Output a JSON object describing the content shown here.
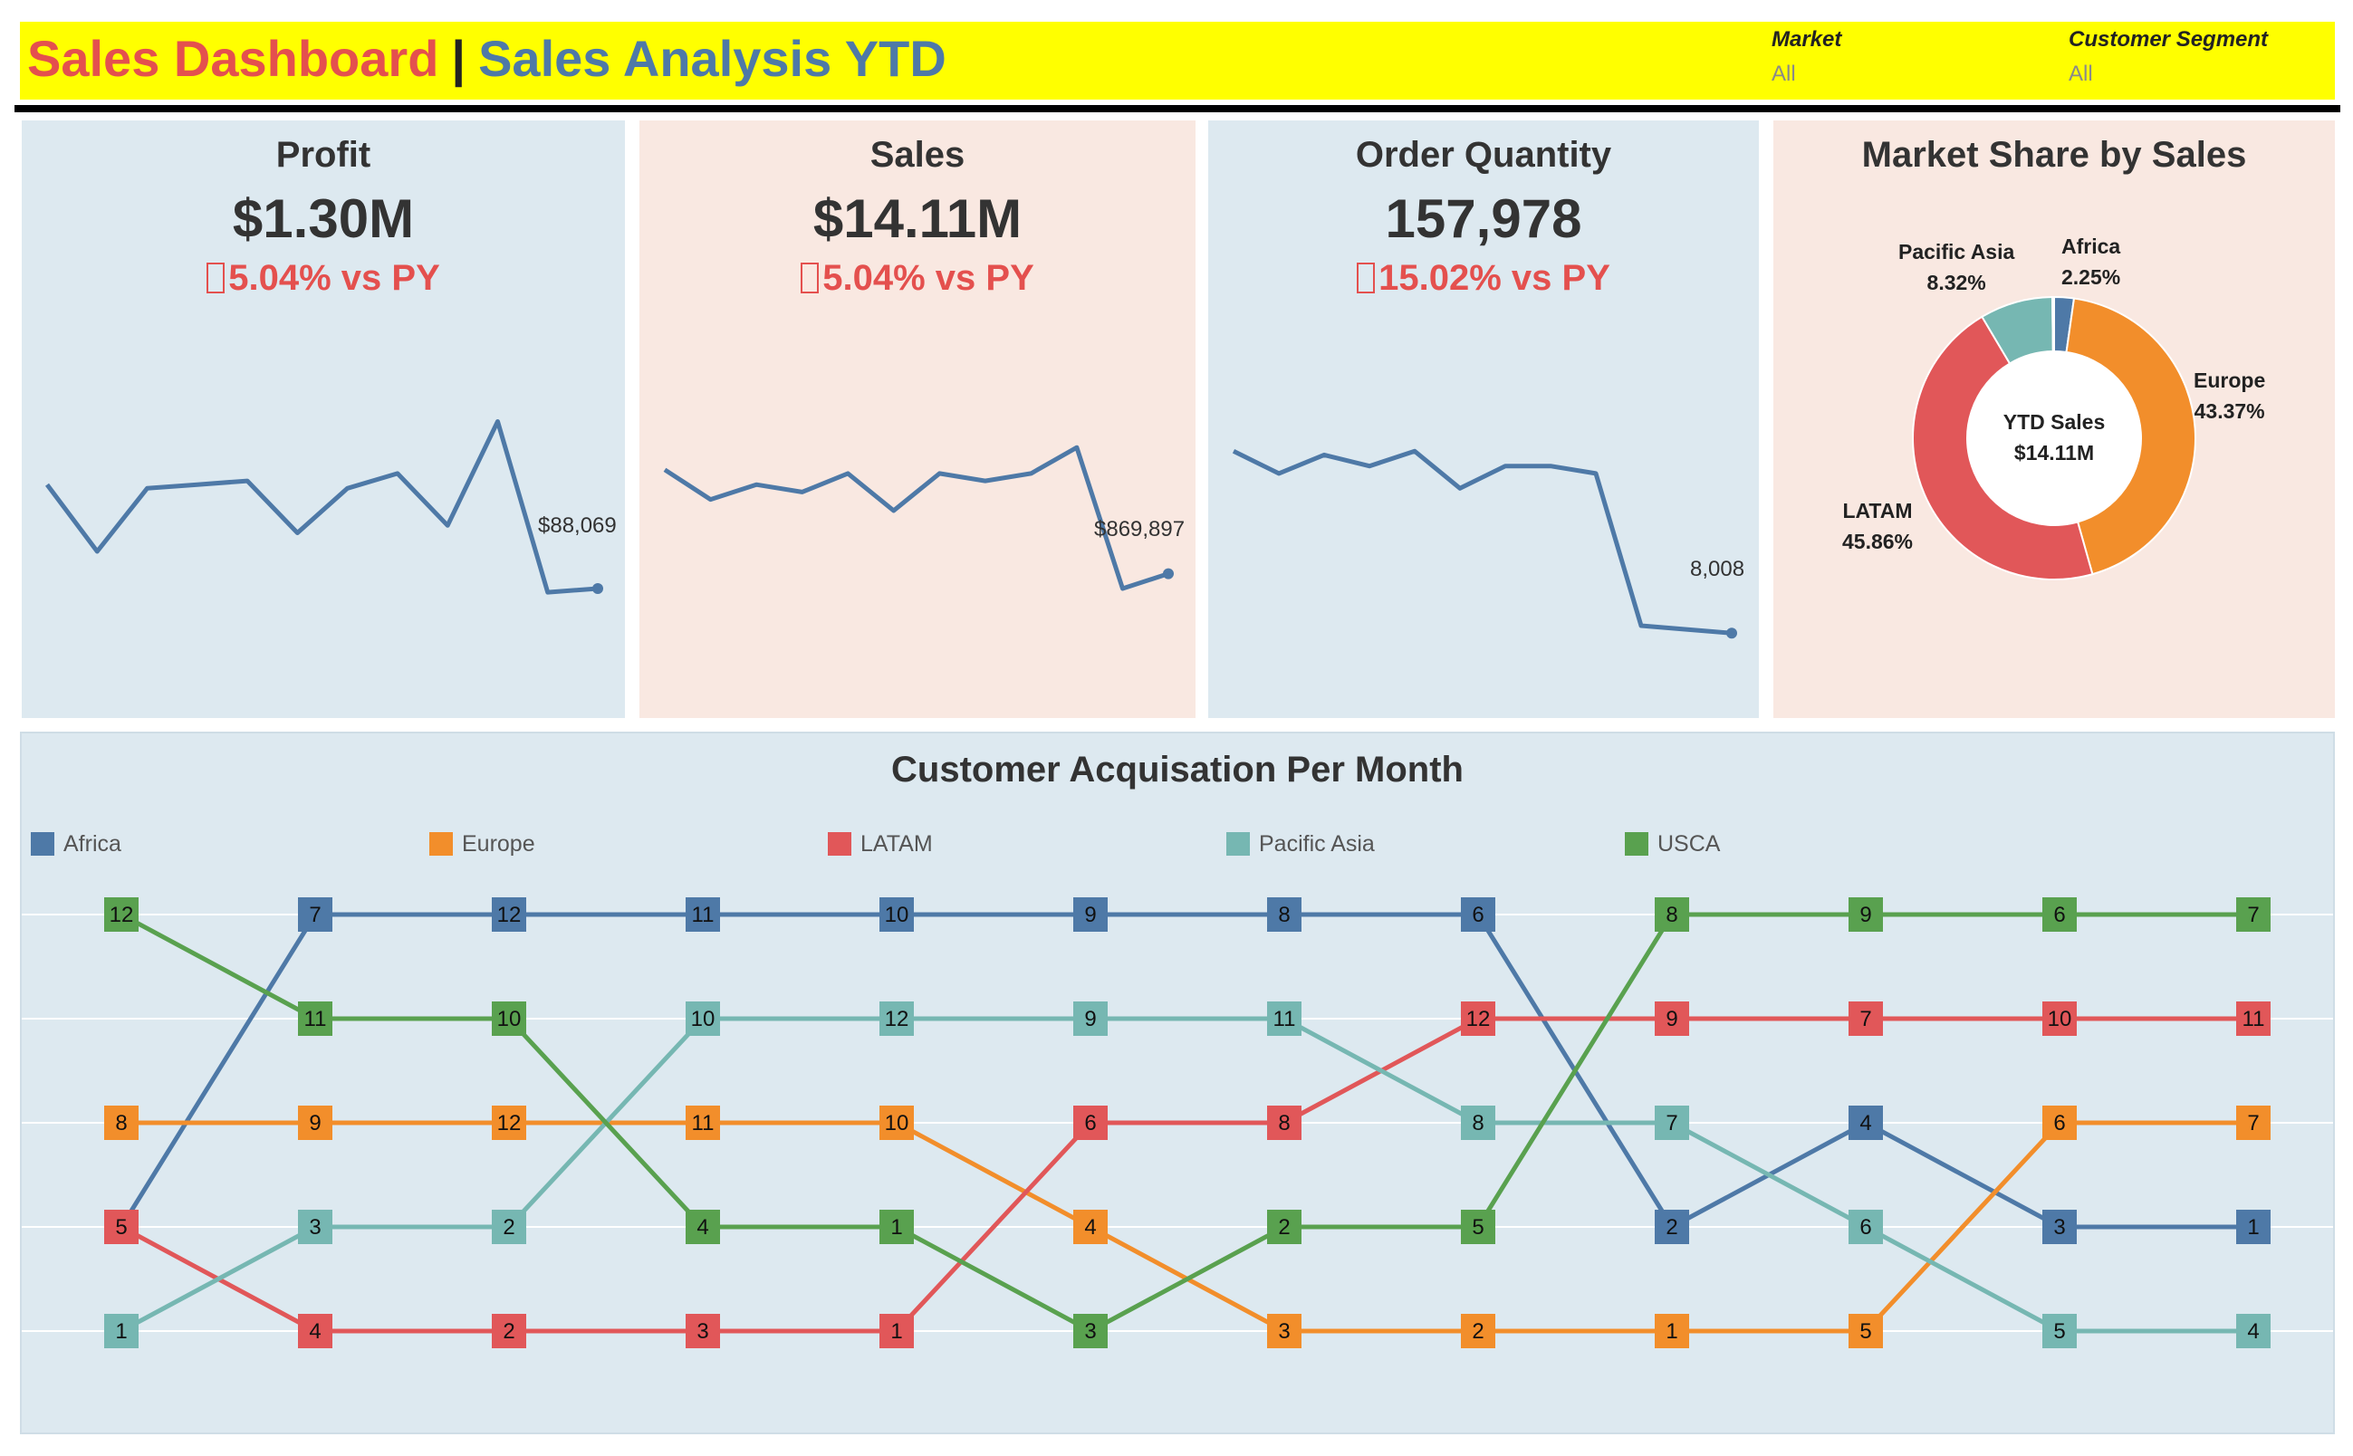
{
  "header": {
    "title_main": "Sales Dashboard",
    "title_sep": "|",
    "title_sub": "Sales Analysis YTD",
    "bg_color": "#ffff00"
  },
  "filters": [
    {
      "label": "Market",
      "value": "All"
    },
    {
      "label": "Customer Segment",
      "value": "All"
    }
  ],
  "kpis": [
    {
      "title": "Profit",
      "value": "$1.30M",
      "delta": "5.04% vs PY",
      "delta_icon": "missing-glyph-icon",
      "last_label": "$88,069",
      "spark": [
        0.58,
        0.4,
        0.57,
        0.58,
        0.59,
        0.45,
        0.57,
        0.61,
        0.47,
        0.75,
        0.29,
        0.3
      ]
    },
    {
      "title": "Sales",
      "value": "$14.11M",
      "delta": "5.04% vs PY",
      "delta_icon": "missing-glyph-icon",
      "last_label": "$869,897",
      "spark": [
        0.62,
        0.54,
        0.58,
        0.56,
        0.61,
        0.51,
        0.61,
        0.59,
        0.61,
        0.68,
        0.3,
        0.34
      ]
    },
    {
      "title": "Order Quantity",
      "value": "157,978",
      "delta": "15.02% vs PY",
      "delta_icon": "missing-glyph-icon",
      "last_label": "8,008",
      "spark": [
        0.67,
        0.61,
        0.66,
        0.63,
        0.67,
        0.57,
        0.63,
        0.63,
        0.61,
        0.2,
        0.19,
        0.18
      ]
    }
  ],
  "market_share": {
    "title": "Market Share by Sales",
    "center_label": "YTD Sales",
    "center_value": "$14.11M",
    "slices": [
      {
        "name": "Africa",
        "value": 2.25,
        "label": "2.25%",
        "color": "#4e79a7"
      },
      {
        "name": "Europe",
        "value": 43.37,
        "label": "43.37%",
        "color": "#f28e2b"
      },
      {
        "name": "LATAM",
        "value": 45.86,
        "label": "45.86%",
        "color": "#e15759"
      },
      {
        "name": "Pacific Asia",
        "value": 8.32,
        "label": "8.32%",
        "color": "#76b7b2"
      },
      {
        "name": "USCA",
        "value": 0.2,
        "label": "",
        "color": "#59a14f"
      }
    ]
  },
  "chart_data": {
    "type": "line",
    "title": "Customer Acquisation Per Month",
    "ranks": 5,
    "series": [
      {
        "name": "Africa",
        "color": "#4e79a7",
        "rank": [
          4,
          1,
          1,
          1,
          1,
          1,
          1,
          1,
          4,
          3,
          4,
          4
        ],
        "labels": [
          "5",
          "7",
          "12",
          "11",
          "10",
          "9",
          "8",
          "6",
          "2",
          "4",
          "3",
          "1"
        ]
      },
      {
        "name": "Europe",
        "color": "#f28e2b",
        "rank": [
          3,
          3,
          3,
          3,
          3,
          4,
          5,
          5,
          5,
          5,
          3,
          3
        ],
        "labels": [
          "8",
          "9",
          "12",
          "11",
          "10",
          "4",
          "3",
          "2",
          "1",
          "5",
          "6",
          "7"
        ]
      },
      {
        "name": "LATAM",
        "color": "#e15759",
        "rank": [
          4,
          5,
          5,
          5,
          5,
          3,
          3,
          2,
          2,
          2,
          2,
          2
        ],
        "labels": [
          "5",
          "4",
          "2",
          "3",
          "1",
          "6",
          "8",
          "12",
          "9",
          "7",
          "10",
          "11"
        ]
      },
      {
        "name": "Pacific Asia",
        "color": "#76b7b2",
        "rank": [
          5,
          4,
          4,
          2,
          2,
          2,
          2,
          3,
          3,
          4,
          5,
          5
        ],
        "labels": [
          "1",
          "3",
          "2",
          "10",
          "12",
          "9",
          "11",
          "8",
          "7",
          "6",
          "5",
          "4"
        ]
      },
      {
        "name": "USCA",
        "color": "#59a14f",
        "rank": [
          1,
          2,
          2,
          4,
          4,
          5,
          4,
          4,
          1,
          1,
          1,
          1
        ],
        "labels": [
          "12",
          "11",
          "10",
          "4",
          "1",
          "3",
          "2",
          "5",
          "8",
          "9",
          "6",
          "7"
        ]
      }
    ]
  }
}
